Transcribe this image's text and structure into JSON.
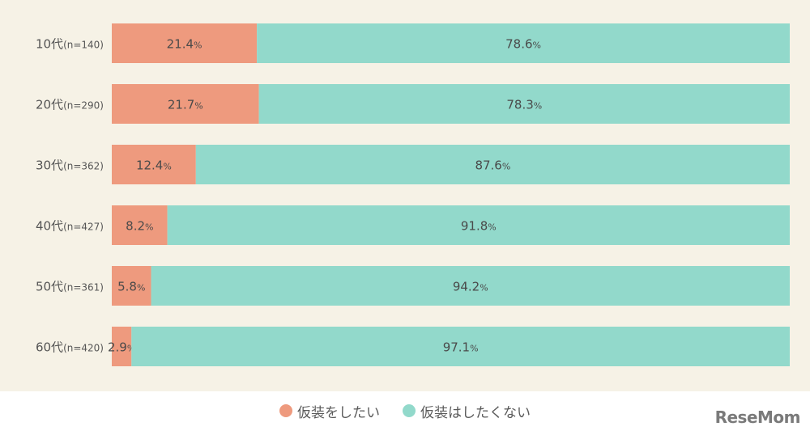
{
  "chart_data": {
    "type": "bar",
    "orientation": "horizontal-stacked-100",
    "categories": [
      {
        "age": "10代",
        "n": "(n=140)"
      },
      {
        "age": "20代",
        "n": "(n=290)"
      },
      {
        "age": "30代",
        "n": "(n=362)"
      },
      {
        "age": "40代",
        "n": "(n=427)"
      },
      {
        "age": "50代",
        "n": "(n=361)"
      },
      {
        "age": "60代",
        "n": "(n=420)"
      }
    ],
    "series": [
      {
        "name": "仮装をしたい",
        "color": "#ee9a7e",
        "values": [
          21.4,
          21.7,
          12.4,
          8.2,
          5.8,
          2.9
        ]
      },
      {
        "name": "仮装はしたくない",
        "color": "#92d9cb",
        "values": [
          78.6,
          78.3,
          87.6,
          91.8,
          94.2,
          97.1
        ]
      }
    ],
    "value_suffix": "%",
    "legend_position": "bottom-center",
    "grid": false
  },
  "brand": {
    "name": "ReseMom"
  }
}
